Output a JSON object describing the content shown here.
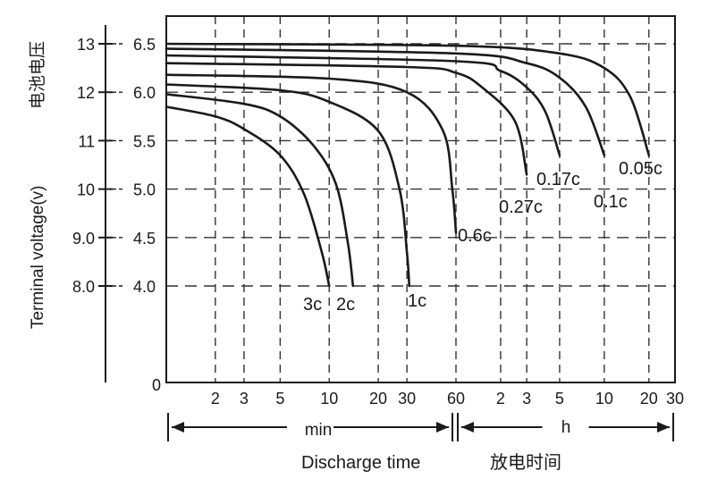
{
  "chart_data": {
    "type": "line",
    "ylabel": "Terminal voltage(v)",
    "ylabel_cn": "电池电压",
    "xlabel": "Discharge time",
    "xlabel_cn": "放电时间",
    "y_outer_ticks": [
      "13",
      "12",
      "11",
      "10",
      "9.0",
      "8.0"
    ],
    "y_outer_values": [
      13,
      12,
      11,
      10,
      9.0,
      8.0
    ],
    "y_inner_ticks": [
      "6.5",
      "6.0",
      "5.5",
      "5.0",
      "4.5",
      "4.0"
    ],
    "y_inner_values": [
      6.5,
      6.0,
      5.5,
      5.0,
      4.5,
      4.0
    ],
    "y_zero_label": "0",
    "x_min_ticks": [
      "2",
      "3",
      "5",
      "10",
      "20",
      "30",
      "60"
    ],
    "x_min_values": [
      2,
      3,
      5,
      10,
      20,
      30,
      60
    ],
    "x_h_ticks": [
      "2",
      "3",
      "5",
      "10",
      "20",
      "30"
    ],
    "x_h_values": [
      2,
      3,
      5,
      10,
      20,
      30
    ],
    "range_min_label": "min",
    "range_h_label": "h",
    "grid": true,
    "series": [
      {
        "name": "3c",
        "points": [
          [
            1,
            5.85
          ],
          [
            2,
            5.75
          ],
          [
            3,
            5.62
          ],
          [
            5,
            5.35
          ],
          [
            7,
            4.95
          ],
          [
            9,
            4.35
          ],
          [
            10,
            4.0
          ]
        ]
      },
      {
        "name": "2c",
        "points": [
          [
            1,
            5.98
          ],
          [
            3,
            5.88
          ],
          [
            5,
            5.75
          ],
          [
            8,
            5.45
          ],
          [
            11,
            5.05
          ],
          [
            13,
            4.45
          ],
          [
            14,
            4.0
          ]
        ]
      },
      {
        "name": "1c",
        "points": [
          [
            1,
            6.08
          ],
          [
            5,
            6.02
          ],
          [
            10,
            5.9
          ],
          [
            20,
            5.6
          ],
          [
            27,
            5.0
          ],
          [
            30,
            4.35
          ],
          [
            31,
            4.0
          ]
        ]
      },
      {
        "name": "0.6c",
        "points": [
          [
            1,
            6.18
          ],
          [
            10,
            6.14
          ],
          [
            30,
            6.0
          ],
          [
            50,
            5.6
          ],
          [
            57,
            5.0
          ],
          [
            60,
            4.55
          ]
        ]
      },
      {
        "name": "0.27c",
        "points": [
          [
            1,
            6.3
          ],
          [
            30,
            6.26
          ],
          [
            60,
            6.2
          ],
          [
            90,
            6.05
          ],
          [
            150,
            5.7
          ],
          [
            180,
            5.15
          ]
        ]
      },
      {
        "name": "0.17c",
        "points": [
          [
            1,
            6.38
          ],
          [
            60,
            6.32
          ],
          [
            120,
            6.22
          ],
          [
            180,
            6.05
          ],
          [
            240,
            5.8
          ],
          [
            300,
            5.35
          ]
        ]
      },
      {
        "name": "0.1c",
        "points": [
          [
            1,
            6.45
          ],
          [
            60,
            6.4
          ],
          [
            180,
            6.3
          ],
          [
            300,
            6.15
          ],
          [
            450,
            5.85
          ],
          [
            600,
            5.35
          ]
        ]
      },
      {
        "name": "0.05c",
        "points": [
          [
            1,
            6.5
          ],
          [
            60,
            6.48
          ],
          [
            300,
            6.4
          ],
          [
            600,
            6.25
          ],
          [
            900,
            5.95
          ],
          [
            1200,
            5.35
          ]
        ]
      }
    ],
    "series_labels": [
      "3c",
      "2c",
      "1c",
      "0.6c",
      "0.27c",
      "0.17c",
      "0.1c",
      "0.05c"
    ]
  }
}
